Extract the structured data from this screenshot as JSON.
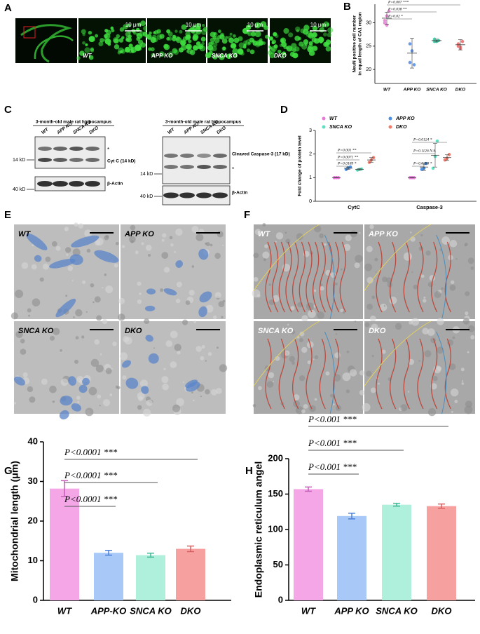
{
  "panel_letters": [
    "A",
    "B",
    "C",
    "D",
    "E",
    "F",
    "G",
    "H"
  ],
  "panel_a": {
    "scale_bar": "10 μm",
    "labels": [
      "WT",
      "APP KO",
      "SNCA KO",
      "DKO"
    ]
  },
  "panel_c": {
    "title": "3-month-old male rat hippocampus",
    "lanes": [
      "WT",
      "APP KO",
      "SNCA KO",
      "DKO"
    ],
    "left_blot": {
      "markers": [
        "14 kD",
        "40 kD"
      ],
      "bands": [
        "Cyt C (14 kD)",
        "β-Actin"
      ],
      "asterisk": "*"
    },
    "right_blot": {
      "markers": [
        "14 kD",
        "40 kD"
      ],
      "bands": [
        "Cleaved Caspase-3 (17 kD)",
        "β-Actin"
      ],
      "asterisk": "*"
    }
  },
  "panel_e": {
    "labels": [
      "WT",
      "APP KO",
      "SNCA KO",
      "DKO"
    ]
  },
  "panel_f": {
    "labels": [
      "WT",
      "APP KO",
      "SNCA KO",
      "DKO"
    ]
  },
  "chart_data": [
    {
      "type": "dot",
      "ylabel": [
        "NeuN positive cell number",
        "in equal length of CA1 region"
      ],
      "categories": [
        "WT",
        "APP KO",
        "SNCA KO",
        "DKO"
      ],
      "values": [
        31,
        23.5,
        26.2,
        25.3
      ],
      "errors": [
        1.3,
        3.2,
        0.3,
        1.1
      ],
      "points": [
        [
          30,
          31.5,
          32.5,
          30.5,
          29.5
        ],
        [
          25.5,
          24,
          21,
          21.5
        ],
        [
          26,
          26,
          26.2,
          26.5
        ],
        [
          25,
          24.5,
          26,
          25.5,
          24.8
        ]
      ],
      "colors": [
        "#e88fd8",
        "#6a9be8",
        "#4fd6b3",
        "#ee7d7d"
      ],
      "ylim": [
        17,
        34
      ],
      "yticks": [
        20,
        25,
        30
      ],
      "annotations": [
        "P=0.02 *",
        "P=0.038 **",
        "P=0.007 ***"
      ]
    },
    {
      "type": "dot",
      "ylabel": [
        "Fold change of protein level"
      ],
      "categories": [
        "CytC",
        "Caspase-3"
      ],
      "series": [
        {
          "name": "WT",
          "color": "#e879d8",
          "values": [
            1,
            1
          ],
          "errors": [
            0.01,
            0.01
          ],
          "points": [
            [
              1,
              1,
              1
            ],
            [
              1,
              1,
              1
            ]
          ]
        },
        {
          "name": "APP KO",
          "color": "#4a90e2",
          "values": [
            1.4,
            1.45
          ],
          "errors": [
            0.05,
            0.15
          ],
          "points": [
            [
              1.35,
              1.42,
              1.45
            ],
            [
              1.35,
              1.4,
              1.6
            ]
          ]
        },
        {
          "name": "SNCA KO",
          "color": "#5fe0c0",
          "values": [
            1.35,
            1.95
          ],
          "errors": [
            0.03,
            0.5
          ],
          "points": [
            [
              1.32,
              1.35,
              1.37
            ],
            [
              1.4,
              1.9,
              2.55
            ]
          ]
        },
        {
          "name": "DKO",
          "color": "#f27b6b",
          "values": [
            1.75,
            1.85
          ],
          "errors": [
            0.1,
            0.12
          ],
          "points": [
            [
              1.65,
              1.75,
              1.85
            ],
            [
              1.75,
              1.82,
              1.98
            ]
          ]
        }
      ],
      "ylim": [
        0,
        3
      ],
      "yticks": [
        0,
        1,
        2,
        3
      ],
      "annotations": [
        [
          "P=0.0189 *",
          "P=0.0071 **",
          "P=0.001 **"
        ],
        [
          "P=0.0298 *",
          "P=0.1126 N.S.",
          "P=0.0124 *"
        ]
      ]
    },
    {
      "type": "bar",
      "ylabel": [
        "Mitochondrial length (μm)"
      ],
      "categories": [
        "WT",
        "APP-KO",
        "SNCA KO",
        "DKO"
      ],
      "values": [
        28.2,
        12,
        11.4,
        13
      ],
      "errors": [
        2,
        0.6,
        0.5,
        0.7
      ],
      "colors": [
        "#f4a6e6",
        "#a8c8f8",
        "#aef0dc",
        "#f7a0a0"
      ],
      "ylim": [
        0,
        40
      ],
      "yticks": [
        0,
        10,
        20,
        30,
        40
      ],
      "annotations": [
        "P<0.0001 ***",
        "P<0.0001 ***",
        "P<0.0001 ***"
      ]
    },
    {
      "type": "bar",
      "ylabel": [
        "Endoplasmic reticulum angel"
      ],
      "categories": [
        "WT",
        "APP KO",
        "SNCA KO",
        "DKO"
      ],
      "values": [
        157,
        119,
        135,
        133
      ],
      "errors": [
        3,
        4,
        2,
        3
      ],
      "colors": [
        "#f4a6e6",
        "#a8c8f8",
        "#aef0dc",
        "#f7a0a0"
      ],
      "ylim": [
        0,
        200
      ],
      "yticks": [
        0,
        50,
        100,
        150,
        200
      ],
      "annotations": [
        "P<0.001 ***",
        "P<0.001 ***",
        "P<0.001 ***"
      ]
    }
  ]
}
